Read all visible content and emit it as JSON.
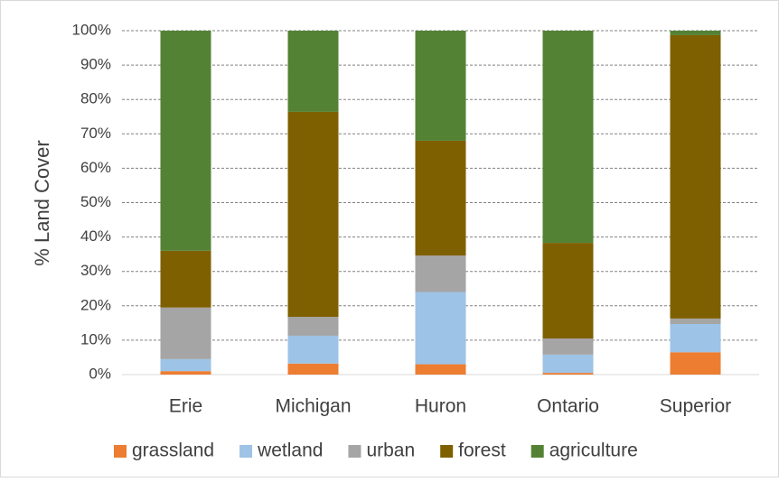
{
  "chart_data": {
    "type": "stacked-bar",
    "y_label": "% Land Cover",
    "categories": [
      "Erie",
      "Michigan",
      "Huron",
      "Ontario",
      "Superior"
    ],
    "series": [
      {
        "name": "grassland",
        "color": "#ed7d31",
        "values": [
          1,
          3.2,
          3,
          0.5,
          6.5
        ]
      },
      {
        "name": "wetland",
        "color": "#9dc3e6",
        "values": [
          3.5,
          8.1,
          21,
          5.3,
          8.2
        ]
      },
      {
        "name": "urban",
        "color": "#a5a5a5",
        "values": [
          15,
          5.5,
          10.6,
          4.7,
          1.6
        ]
      },
      {
        "name": "forest",
        "color": "#7f6000",
        "values": [
          16.5,
          59.6,
          33.4,
          27.8,
          82.4
        ]
      },
      {
        "name": "agriculture",
        "color": "#548235",
        "values": [
          64,
          23.6,
          32,
          61.7,
          1.3
        ]
      }
    ],
    "ylim": [
      0,
      100
    ],
    "yticks": [
      {
        "value": 0,
        "label": "0%"
      },
      {
        "value": 10,
        "label": "10%"
      },
      {
        "value": 20,
        "label": "20%"
      },
      {
        "value": 30,
        "label": "30%"
      },
      {
        "value": 40,
        "label": "40%"
      },
      {
        "value": 50,
        "label": "50%"
      },
      {
        "value": 60,
        "label": "60%"
      },
      {
        "value": 70,
        "label": "70%"
      },
      {
        "value": 80,
        "label": "80%"
      },
      {
        "value": 90,
        "label": "90%"
      },
      {
        "value": 100,
        "label": "100%"
      }
    ],
    "grid": true,
    "legend": "bottom"
  }
}
